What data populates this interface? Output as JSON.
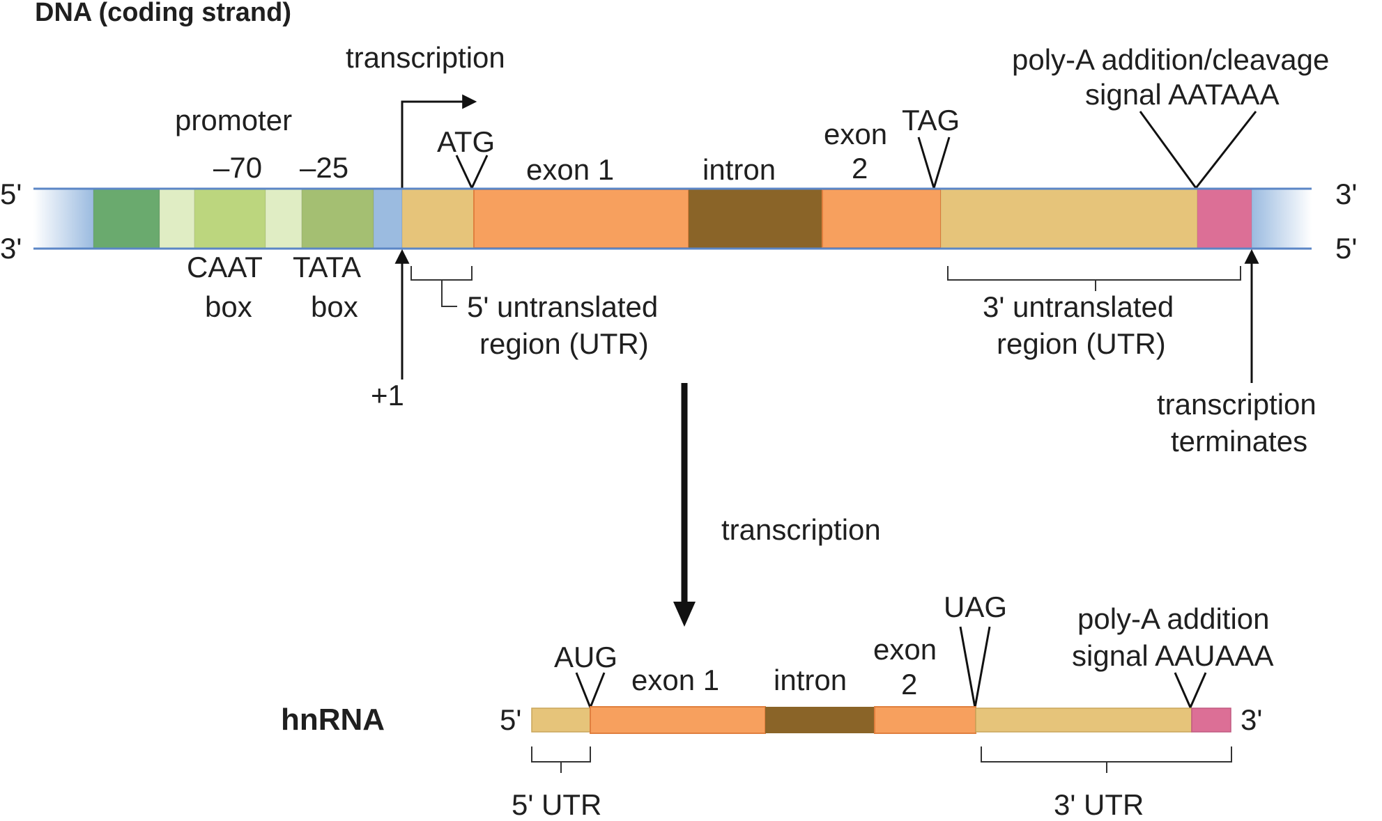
{
  "dna": {
    "title": "DNA (coding strand)",
    "transcription_label": "transcription",
    "promoter_label": "promoter",
    "minus70": "–70",
    "minus25": "–25",
    "atg": "ATG",
    "exon1": "exon 1",
    "intron": "intron",
    "exon2_line1": "exon",
    "exon2_line2": "2",
    "tag": "TAG",
    "polya_line1": "poly-A addition/cleavage",
    "polya_line2": "signal AATAAA",
    "caat_line1": "CAAT",
    "caat_line2": "box",
    "tata_line1": "TATA",
    "tata_line2": "box",
    "utr5_line1": "5' untranslated",
    "utr5_line2": "region (UTR)",
    "utr3_line1": "3' untranslated",
    "utr3_line2": "region (UTR)",
    "plus1": "+1",
    "term_line1": "transcription",
    "term_line2": "terminates",
    "end_5_top": "5'",
    "end_3_bottom": "3'",
    "end_3_top": "3'",
    "end_5_bottom": "5'"
  },
  "middle": {
    "transcription_label": "transcription"
  },
  "hnrna": {
    "title": "hnRNA",
    "end_5": "5'",
    "end_3": "3'",
    "aug": "AUG",
    "exon1": "exon 1",
    "intron": "intron",
    "exon2_line1": "exon",
    "exon2_line2": "2",
    "uag": "UAG",
    "polya_line1": "poly-A addition",
    "polya_line2": "signal AAUAAA",
    "utr5": "5' UTR",
    "utr3": "3' UTR"
  },
  "colors": {
    "blue_cap": "#9bbbe0",
    "green_dark": "#6aaa6e",
    "green_light": "#e0edc4",
    "green_mid": "#bcd67e",
    "green_olive": "#a4bf72",
    "utr_tan": "#e6c47a",
    "exon_orange": "#f7a05e",
    "intron_brown": "#8a6428",
    "polya_pink": "#dc6f96"
  }
}
